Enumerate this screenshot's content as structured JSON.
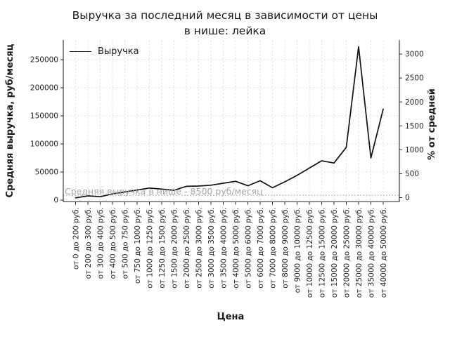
{
  "chart_data": {
    "type": "line",
    "title": "Выручка за последний месяц в зависимости от цены\nв нише: лейка",
    "xlabel": "Цена",
    "ylabel": "Средняя выручка, руб/месяц",
    "ylabel_right": "% от средней",
    "legend": [
      "Выручка"
    ],
    "legend_position": "upper left",
    "grid": true,
    "grid_style": "dashed",
    "categories": [
      "от 0 до 200 руб.",
      "от 200 до 300 руб.",
      "от 300 до 400 руб.",
      "от 400 до 500 руб.",
      "от 500 до 750 руб.",
      "от 750 до 1000 руб.",
      "от 1000 до 1250 руб.",
      "от 1250 до 1500 руб.",
      "от 1500 до 2000 руб.",
      "от 2000 до 2500 руб.",
      "от 2500 до 3000 руб.",
      "от 3000 до 3500 руб.",
      "от 3500 до 4000 руб.",
      "от 4000 до 5000 руб.",
      "от 5000 до 6000 руб.",
      "от 6000 до 7000 руб.",
      "от 7000 до 8000 руб.",
      "от 8000 до 9000 руб.",
      "от 9000 до 10000 руб.",
      "от 10000 до 12500 руб.",
      "от 12500 до 15000 руб.",
      "от 15000 до 20000 руб.",
      "от 20000 до 25000 руб.",
      "от 25000 до 30000 руб.",
      "от 35000 до 40000 руб.",
      "от 40000 до 50000 руб."
    ],
    "series": [
      {
        "name": "Выручка",
        "values": [
          4000,
          7500,
          6000,
          11000,
          14500,
          18000,
          21500,
          19500,
          17500,
          24500,
          25000,
          26500,
          30000,
          33500,
          25500,
          34500,
          22000,
          32500,
          44000,
          57000,
          70000,
          66000,
          94000,
          273000,
          75000,
          162000
        ]
      }
    ],
    "left_axis": {
      "ticks": [
        0,
        50000,
        100000,
        150000,
        200000,
        250000
      ],
      "lim": [
        0,
        285000
      ]
    },
    "right_axis": {
      "ticks": [
        0,
        500,
        1000,
        1500,
        2000,
        2500,
        3000
      ],
      "lim": [
        0,
        3000
      ],
      "unit": "%"
    },
    "annotation": {
      "text": "Средняя выручка в нише - 8500 руб/месяц",
      "value": 8500
    },
    "colors": {
      "line": "#111111",
      "grid": "#d9d9d9",
      "avg_line": "#b0b0b0",
      "annotation_text": "#a6a6a6",
      "axis": "#262626",
      "text": "#1a1a1a"
    }
  }
}
